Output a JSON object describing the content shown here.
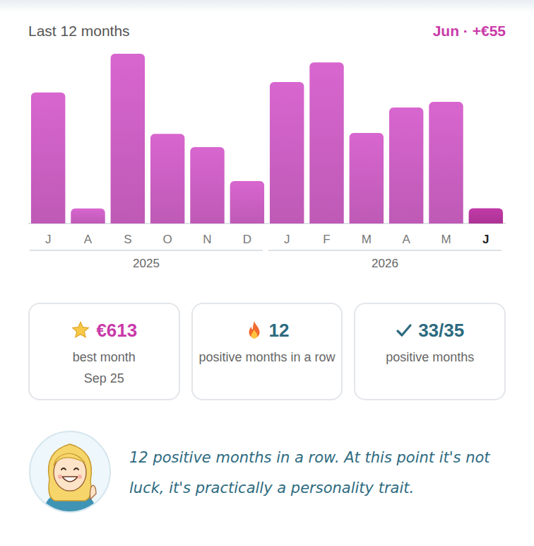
{
  "chart_data": {
    "type": "bar",
    "title": "Last 12 months",
    "subtitle": "Jun · +€55",
    "categories": [
      "J",
      "A",
      "S",
      "O",
      "N",
      "D",
      "J",
      "F",
      "M",
      "A",
      "M",
      "J"
    ],
    "values": [
      473,
      54,
      613,
      324,
      276,
      153,
      511,
      582,
      327,
      419,
      439,
      55
    ],
    "colors": [
      "#d866cf",
      "#d866cf",
      "#d866cf",
      "#d866cf",
      "#d866cf",
      "#d866cf",
      "#d866cf",
      "#d866cf",
      "#d866cf",
      "#d866cf",
      "#d866cf",
      "#c23aa8"
    ],
    "groups": [
      {
        "label": "2025",
        "count": 6
      },
      {
        "label": "2026",
        "count": 6
      }
    ],
    "ylim": [
      0,
      613
    ],
    "grid": false,
    "tick_labels": "x"
  },
  "stats": [
    {
      "value": "€613",
      "caption": "best month",
      "detail": "Sep 25"
    },
    {
      "value": "12",
      "caption": "positive months in a row"
    },
    {
      "value": "33/35",
      "caption": "positive months"
    }
  ],
  "message": "12 positive months in a row. At this point it's not luck, it's practically a personality trait."
}
